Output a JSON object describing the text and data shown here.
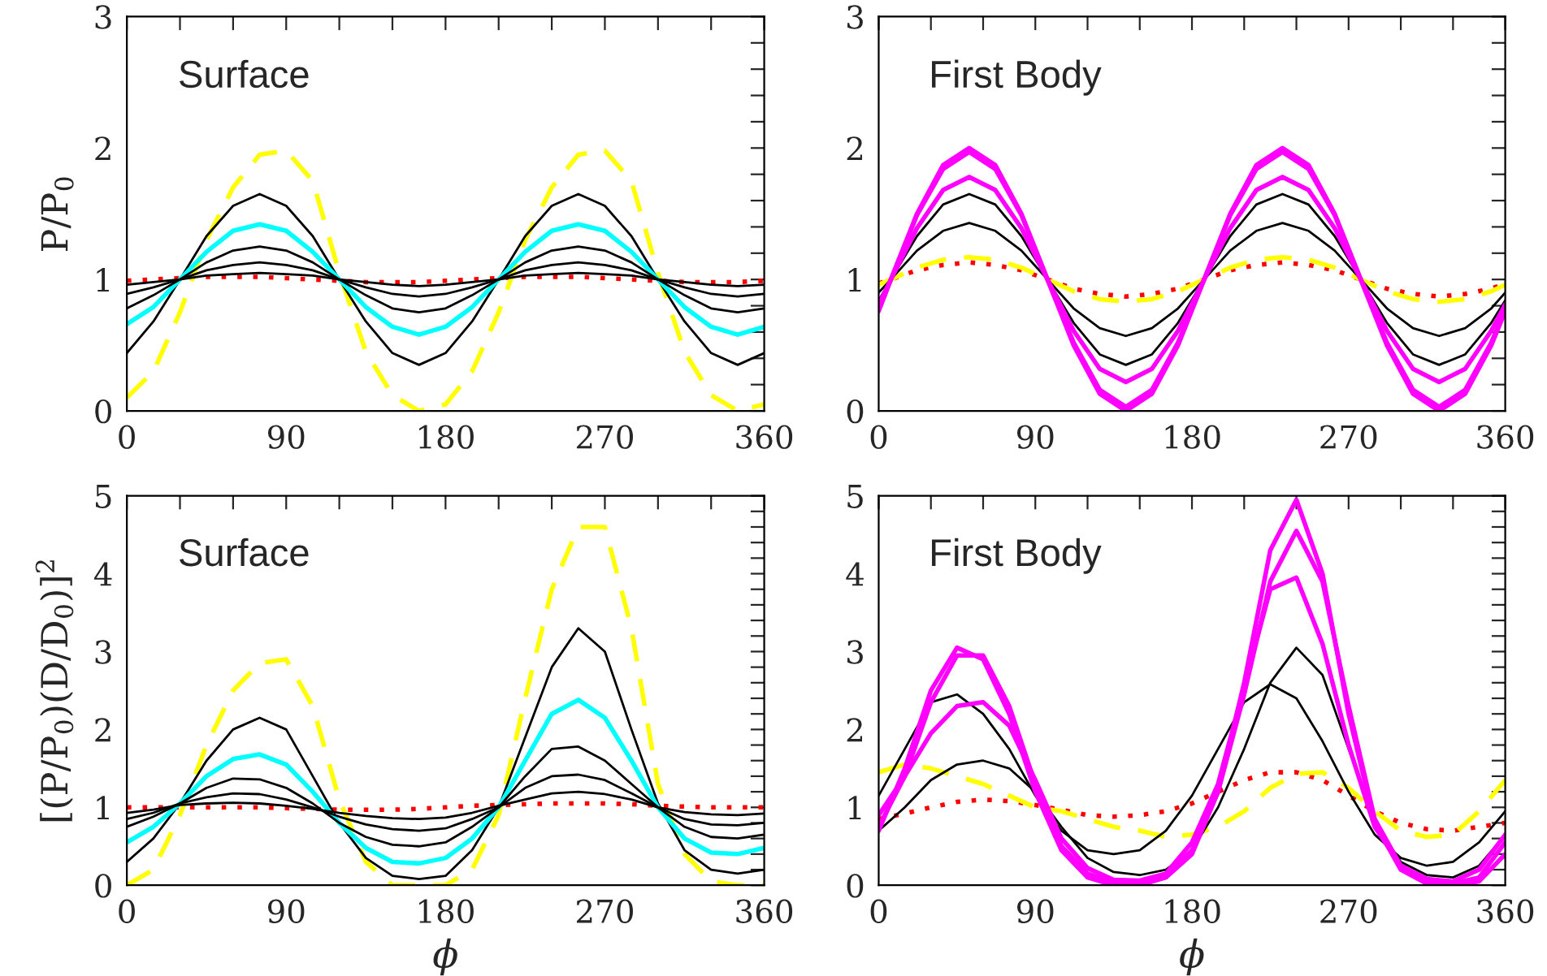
{
  "chart_data": [
    {
      "type": "line",
      "title": "Surface",
      "ylabel": "P/P$_{0}$",
      "xlim": [
        0,
        360
      ],
      "ylim": [
        0,
        3
      ],
      "xticks": [
        0,
        {
          "value": 30,
          "label": null
        },
        {
          "value": 60,
          "label": null
        },
        90,
        {
          "value": 120,
          "label": null
        },
        {
          "value": 150,
          "label": null
        },
        180,
        {
          "value": 210,
          "label": null
        },
        {
          "value": 240,
          "label": null
        },
        270,
        {
          "value": 300,
          "label": null
        },
        {
          "value": 330,
          "label": null
        },
        360
      ],
      "yticks": [
        0,
        {
          "value": 0.2,
          "label": null
        },
        {
          "value": 0.4,
          "label": null
        },
        {
          "value": 0.6,
          "label": null
        },
        {
          "value": 0.8,
          "label": null
        },
        1,
        {
          "value": 1.2,
          "label": null
        },
        {
          "value": 1.4,
          "label": null
        },
        {
          "value": 1.6,
          "label": null
        },
        {
          "value": 1.8,
          "label": null
        },
        2,
        {
          "value": 2.2,
          "label": null
        },
        {
          "value": 2.4,
          "label": null
        },
        {
          "value": 2.6,
          "label": null
        },
        {
          "value": 2.8,
          "label": null
        },
        3
      ],
      "x": [
        0,
        15,
        30,
        45,
        60,
        75,
        90,
        105,
        120,
        135,
        150,
        165,
        180,
        195,
        210,
        225,
        240,
        255,
        270,
        285,
        300,
        315,
        330,
        345,
        360
      ],
      "grid": false,
      "legend": false,
      "series": [
        {
          "color": "#ff0000",
          "line_style": "dotted",
          "values": [
            0.99,
            1.0,
            1.01,
            1.02,
            1.02,
            1.02,
            1.01,
            1.0,
            0.99,
            0.98,
            0.98,
            0.98,
            0.99,
            1.0,
            1.01,
            1.02,
            1.02,
            1.02,
            1.01,
            1.0,
            0.99,
            0.98,
            0.98,
            0.98,
            0.99
          ]
        },
        {
          "color": "#ffff00",
          "line_style": "dashed",
          "values": [
            0.1,
            0.3,
            0.75,
            1.3,
            1.7,
            1.95,
            1.98,
            1.75,
            1.05,
            0.45,
            0.12,
            0.0,
            0.05,
            0.3,
            0.75,
            1.3,
            1.7,
            1.95,
            1.98,
            1.75,
            1.05,
            0.45,
            0.12,
            0.0,
            0.05
          ]
        },
        {
          "color": "#000000",
          "line_style": "solid",
          "values": [
            0.44,
            0.68,
            1.0,
            1.33,
            1.56,
            1.65,
            1.56,
            1.33,
            1.0,
            0.68,
            0.44,
            0.35,
            0.44,
            0.68,
            1.0,
            1.33,
            1.56,
            1.65,
            1.56,
            1.33,
            1.0,
            0.68,
            0.44,
            0.35,
            0.44
          ]
        },
        {
          "color": "#00ffff",
          "line_style": "solid",
          "values": [
            0.66,
            0.79,
            1.0,
            1.21,
            1.37,
            1.42,
            1.37,
            1.21,
            1.0,
            0.79,
            0.64,
            0.58,
            0.64,
            0.79,
            1.0,
            1.21,
            1.37,
            1.42,
            1.37,
            1.21,
            1.0,
            0.79,
            0.64,
            0.58,
            0.64
          ]
        },
        {
          "color": "#000000",
          "line_style": "solid",
          "values": [
            0.78,
            0.88,
            1.0,
            1.13,
            1.22,
            1.25,
            1.22,
            1.13,
            1.0,
            0.88,
            0.78,
            0.75,
            0.78,
            0.88,
            1.0,
            1.13,
            1.22,
            1.25,
            1.22,
            1.13,
            1.0,
            0.88,
            0.78,
            0.75,
            0.78
          ]
        },
        {
          "color": "#000000",
          "line_style": "solid",
          "values": [
            0.89,
            0.94,
            1.0,
            1.07,
            1.11,
            1.13,
            1.11,
            1.07,
            1.0,
            0.94,
            0.89,
            0.87,
            0.89,
            0.94,
            1.0,
            1.07,
            1.11,
            1.13,
            1.11,
            1.07,
            1.0,
            0.94,
            0.89,
            0.87,
            0.89
          ]
        },
        {
          "color": "#000000",
          "line_style": "solid",
          "values": [
            0.96,
            0.98,
            1.0,
            1.03,
            1.04,
            1.05,
            1.04,
            1.03,
            1.0,
            0.98,
            0.96,
            0.95,
            0.96,
            0.98,
            1.0,
            1.03,
            1.04,
            1.05,
            1.04,
            1.03,
            1.0,
            0.98,
            0.96,
            0.95,
            0.96
          ]
        }
      ]
    },
    {
      "type": "line",
      "title": "First Body",
      "xlim": [
        0,
        360
      ],
      "ylim": [
        0,
        3
      ],
      "xticks": [
        0,
        {
          "value": 30,
          "label": null
        },
        {
          "value": 60,
          "label": null
        },
        90,
        {
          "value": 120,
          "label": null
        },
        {
          "value": 150,
          "label": null
        },
        180,
        {
          "value": 210,
          "label": null
        },
        {
          "value": 240,
          "label": null
        },
        270,
        {
          "value": 300,
          "label": null
        },
        {
          "value": 330,
          "label": null
        },
        360
      ],
      "yticks": [
        0,
        {
          "value": 0.2,
          "label": null
        },
        {
          "value": 0.4,
          "label": null
        },
        {
          "value": 0.6,
          "label": null
        },
        {
          "value": 0.8,
          "label": null
        },
        1,
        {
          "value": 1.2,
          "label": null
        },
        {
          "value": 1.4,
          "label": null
        },
        {
          "value": 1.6,
          "label": null
        },
        {
          "value": 1.8,
          "label": null
        },
        2,
        {
          "value": 2.2,
          "label": null
        },
        {
          "value": 2.4,
          "label": null
        },
        {
          "value": 2.6,
          "label": null
        },
        {
          "value": 2.8,
          "label": null
        },
        3
      ],
      "x": [
        0,
        7,
        22,
        37,
        52,
        67,
        82,
        97,
        112,
        127,
        142,
        157,
        172,
        187,
        202,
        217,
        232,
        247,
        262,
        277,
        292,
        307,
        322,
        337,
        352,
        360
      ],
      "grid": false,
      "legend": false,
      "series": [
        {
          "color": "#ff0000",
          "line_style": "dotted",
          "values": [
            0.97,
            1.0,
            1.07,
            1.11,
            1.13,
            1.11,
            1.07,
            1.0,
            0.93,
            0.89,
            0.87,
            0.89,
            0.93,
            1.0,
            1.07,
            1.11,
            1.13,
            1.11,
            1.07,
            1.0,
            0.93,
            0.89,
            0.87,
            0.89,
            0.93,
            0.97
          ]
        },
        {
          "color": "#ffff00",
          "line_style": "dashed",
          "values": [
            0.96,
            1.0,
            1.09,
            1.15,
            1.17,
            1.15,
            1.09,
            1.0,
            0.91,
            0.85,
            0.83,
            0.85,
            0.91,
            1.0,
            1.09,
            1.15,
            1.17,
            1.15,
            1.09,
            1.0,
            0.91,
            0.85,
            0.83,
            0.85,
            0.91,
            0.96
          ]
        },
        {
          "color": "#000000",
          "line_style": "solid",
          "values": [
            0.9,
            1.0,
            1.22,
            1.37,
            1.43,
            1.37,
            1.22,
            1.0,
            0.78,
            0.63,
            0.57,
            0.63,
            0.78,
            1.0,
            1.22,
            1.37,
            1.43,
            1.37,
            1.22,
            1.0,
            0.78,
            0.63,
            0.57,
            0.63,
            0.78,
            0.9
          ]
        },
        {
          "color": "#000000",
          "line_style": "solid",
          "values": [
            0.84,
            1.0,
            1.33,
            1.57,
            1.65,
            1.57,
            1.33,
            1.0,
            0.67,
            0.43,
            0.35,
            0.43,
            0.67,
            1.0,
            1.33,
            1.57,
            1.65,
            1.57,
            1.33,
            1.0,
            0.67,
            0.43,
            0.35,
            0.43,
            0.67,
            0.84
          ]
        },
        {
          "color": "#ff00ff",
          "line_style": "solid",
          "values": [
            0.81,
            1.0,
            1.39,
            1.68,
            1.78,
            1.68,
            1.39,
            1.0,
            0.61,
            0.32,
            0.22,
            0.32,
            0.61,
            1.0,
            1.39,
            1.68,
            1.78,
            1.68,
            1.39,
            1.0,
            0.61,
            0.32,
            0.22,
            0.32,
            0.61,
            0.81
          ]
        },
        {
          "color": "#ff00ff",
          "line_style": "solid",
          "values": [
            0.77,
            1.0,
            1.49,
            1.84,
            1.97,
            1.84,
            1.49,
            1.0,
            0.52,
            0.16,
            0.03,
            0.16,
            0.52,
            1.0,
            1.49,
            1.84,
            1.97,
            1.84,
            1.49,
            1.0,
            0.52,
            0.16,
            0.03,
            0.16,
            0.52,
            0.77
          ]
        },
        {
          "color": "#ff00ff",
          "line_style": "solid",
          "values": [
            0.76,
            1.0,
            1.5,
            1.87,
            2.0,
            1.87,
            1.5,
            1.0,
            0.5,
            0.13,
            0.0,
            0.13,
            0.5,
            1.0,
            1.5,
            1.87,
            2.0,
            1.87,
            1.5,
            1.0,
            0.5,
            0.13,
            0.0,
            0.13,
            0.5,
            0.76
          ]
        }
      ]
    },
    {
      "type": "line",
      "title": "Surface",
      "xlabel": "ϕ",
      "ylabel": "[(P/P$_{0}$)(D/D$_{0}$)]$^{2}$",
      "xlim": [
        0,
        360
      ],
      "ylim": [
        0,
        5
      ],
      "xticks": [
        0,
        {
          "value": 30,
          "label": null
        },
        {
          "value": 60,
          "label": null
        },
        90,
        {
          "value": 120,
          "label": null
        },
        {
          "value": 150,
          "label": null
        },
        180,
        {
          "value": 210,
          "label": null
        },
        {
          "value": 240,
          "label": null
        },
        270,
        {
          "value": 300,
          "label": null
        },
        {
          "value": 330,
          "label": null
        },
        360
      ],
      "yticks": [
        0,
        {
          "value": 0.2,
          "label": null
        },
        {
          "value": 0.4,
          "label": null
        },
        {
          "value": 0.6,
          "label": null
        },
        {
          "value": 0.8,
          "label": null
        },
        1,
        {
          "value": 1.2,
          "label": null
        },
        {
          "value": 1.4,
          "label": null
        },
        {
          "value": 1.6,
          "label": null
        },
        {
          "value": 1.8,
          "label": null
        },
        2,
        {
          "value": 2.2,
          "label": null
        },
        {
          "value": 2.4,
          "label": null
        },
        {
          "value": 2.6,
          "label": null
        },
        {
          "value": 2.8,
          "label": null
        },
        3,
        {
          "value": 3.2,
          "label": null
        },
        {
          "value": 3.4,
          "label": null
        },
        {
          "value": 3.6,
          "label": null
        },
        {
          "value": 3.8,
          "label": null
        },
        4,
        {
          "value": 4.2,
          "label": null
        },
        {
          "value": 4.4,
          "label": null
        },
        {
          "value": 4.6,
          "label": null
        },
        {
          "value": 4.8,
          "label": null
        },
        5
      ],
      "x": [
        0,
        15,
        30,
        45,
        60,
        75,
        90,
        105,
        120,
        135,
        150,
        165,
        180,
        195,
        210,
        225,
        240,
        255,
        270,
        285,
        300,
        315,
        330,
        345,
        360
      ],
      "grid": false,
      "legend": false,
      "series": [
        {
          "color": "#ff0000",
          "line_style": "dotted",
          "values": [
            1.0,
            1.0,
            1.0,
            1.0,
            1.0,
            1.0,
            0.99,
            0.98,
            0.97,
            0.97,
            0.97,
            0.98,
            1.0,
            1.02,
            1.03,
            1.04,
            1.05,
            1.05,
            1.05,
            1.04,
            1.02,
            1.01,
            1.0,
            1.0,
            1.0
          ]
        },
        {
          "color": "#ffff00",
          "line_style": "dashed",
          "values": [
            0.0,
            0.2,
            0.9,
            1.8,
            2.5,
            2.85,
            2.9,
            2.3,
            1.1,
            0.3,
            0.0,
            0.0,
            0.0,
            0.2,
            0.9,
            2.4,
            3.8,
            4.6,
            4.6,
            3.3,
            1.3,
            0.4,
            0.05,
            0.0,
            0.0
          ]
        },
        {
          "color": "#000000",
          "line_style": "solid",
          "values": [
            0.3,
            0.6,
            1.05,
            1.6,
            2.0,
            2.15,
            2.0,
            1.4,
            0.8,
            0.35,
            0.12,
            0.08,
            0.12,
            0.45,
            1.0,
            1.9,
            2.8,
            3.3,
            3.0,
            2.0,
            1.05,
            0.45,
            0.2,
            0.15,
            0.2
          ]
        },
        {
          "color": "#00ffff",
          "line_style": "solid",
          "values": [
            0.55,
            0.75,
            1.05,
            1.4,
            1.62,
            1.68,
            1.55,
            1.2,
            0.8,
            0.48,
            0.3,
            0.28,
            0.35,
            0.6,
            1.0,
            1.6,
            2.2,
            2.38,
            2.15,
            1.6,
            1.0,
            0.6,
            0.42,
            0.4,
            0.48
          ]
        },
        {
          "color": "#000000",
          "line_style": "solid",
          "values": [
            0.75,
            0.88,
            1.05,
            1.25,
            1.37,
            1.36,
            1.25,
            1.05,
            0.8,
            0.62,
            0.52,
            0.5,
            0.55,
            0.75,
            1.0,
            1.4,
            1.75,
            1.78,
            1.6,
            1.3,
            1.0,
            0.75,
            0.62,
            0.6,
            0.65
          ]
        },
        {
          "color": "#000000",
          "line_style": "solid",
          "values": [
            0.85,
            0.93,
            1.05,
            1.13,
            1.18,
            1.17,
            1.1,
            1.0,
            0.88,
            0.78,
            0.72,
            0.7,
            0.73,
            0.85,
            1.0,
            1.25,
            1.4,
            1.42,
            1.35,
            1.18,
            1.0,
            0.85,
            0.78,
            0.77,
            0.8
          ]
        },
        {
          "color": "#000000",
          "line_style": "solid",
          "values": [
            0.93,
            0.97,
            1.03,
            1.05,
            1.06,
            1.05,
            1.02,
            0.98,
            0.93,
            0.89,
            0.86,
            0.85,
            0.87,
            0.93,
            1.02,
            1.1,
            1.18,
            1.2,
            1.17,
            1.1,
            1.0,
            0.94,
            0.91,
            0.9,
            0.92
          ]
        }
      ]
    },
    {
      "type": "line",
      "title": "First Body",
      "xlabel": "ϕ",
      "xlim": [
        0,
        360
      ],
      "ylim": [
        0,
        5
      ],
      "xticks": [
        0,
        {
          "value": 30,
          "label": null
        },
        {
          "value": 60,
          "label": null
        },
        90,
        {
          "value": 120,
          "label": null
        },
        {
          "value": 150,
          "label": null
        },
        180,
        {
          "value": 210,
          "label": null
        },
        {
          "value": 240,
          "label": null
        },
        270,
        {
          "value": 300,
          "label": null
        },
        {
          "value": 330,
          "label": null
        },
        360
      ],
      "yticks": [
        0,
        {
          "value": 0.2,
          "label": null
        },
        {
          "value": 0.4,
          "label": null
        },
        {
          "value": 0.6,
          "label": null
        },
        {
          "value": 0.8,
          "label": null
        },
        1,
        {
          "value": 1.2,
          "label": null
        },
        {
          "value": 1.4,
          "label": null
        },
        {
          "value": 1.6,
          "label": null
        },
        {
          "value": 1.8,
          "label": null
        },
        2,
        {
          "value": 2.2,
          "label": null
        },
        {
          "value": 2.4,
          "label": null
        },
        {
          "value": 2.6,
          "label": null
        },
        {
          "value": 2.8,
          "label": null
        },
        3,
        {
          "value": 3.2,
          "label": null
        },
        {
          "value": 3.4,
          "label": null
        },
        {
          "value": 3.6,
          "label": null
        },
        {
          "value": 3.8,
          "label": null
        },
        4,
        {
          "value": 4.2,
          "label": null
        },
        {
          "value": 4.4,
          "label": null
        },
        {
          "value": 4.6,
          "label": null
        },
        {
          "value": 4.8,
          "label": null
        },
        5
      ],
      "x": [
        0,
        15,
        30,
        45,
        60,
        75,
        90,
        105,
        120,
        135,
        150,
        165,
        180,
        195,
        210,
        225,
        240,
        255,
        270,
        285,
        300,
        315,
        330,
        345,
        360
      ],
      "grid": false,
      "legend": false,
      "series": [
        {
          "color": "#ff0000",
          "line_style": "dotted",
          "values": [
            0.85,
            0.92,
            1.0,
            1.07,
            1.1,
            1.08,
            1.03,
            0.97,
            0.9,
            0.88,
            0.9,
            0.95,
            1.05,
            1.2,
            1.35,
            1.45,
            1.45,
            1.35,
            1.15,
            0.95,
            0.8,
            0.72,
            0.7,
            0.75,
            0.8
          ]
        },
        {
          "color": "#ffff00",
          "line_style": "dashed",
          "values": [
            1.45,
            1.55,
            1.5,
            1.4,
            1.3,
            1.15,
            1.0,
            0.95,
            0.85,
            0.75,
            0.7,
            0.62,
            0.65,
            0.75,
            0.95,
            1.25,
            1.43,
            1.45,
            1.25,
            0.95,
            0.7,
            0.62,
            0.65,
            0.95,
            1.35
          ]
        },
        {
          "color": "#000000",
          "line_style": "solid",
          "values": [
            1.15,
            1.75,
            2.35,
            2.45,
            2.2,
            1.75,
            1.15,
            0.7,
            0.45,
            0.4,
            0.45,
            0.7,
            1.15,
            1.75,
            2.35,
            2.58,
            2.4,
            1.85,
            1.2,
            0.65,
            0.35,
            0.25,
            0.3,
            0.55,
            0.95
          ]
        },
        {
          "color": "#000000",
          "line_style": "solid",
          "values": [
            0.7,
            1.0,
            1.35,
            1.55,
            1.6,
            1.5,
            1.2,
            0.75,
            0.35,
            0.17,
            0.13,
            0.2,
            0.45,
            1.0,
            1.75,
            2.6,
            3.05,
            2.7,
            1.75,
            0.8,
            0.3,
            0.13,
            0.1,
            0.25,
            0.65
          ]
        },
        {
          "color": "#ff00ff",
          "line_style": "solid",
          "values": [
            0.9,
            1.4,
            1.95,
            2.3,
            2.35,
            2.05,
            1.35,
            0.6,
            0.22,
            0.07,
            0.06,
            0.15,
            0.55,
            1.3,
            2.55,
            3.8,
            3.95,
            3.1,
            1.8,
            0.75,
            0.25,
            0.08,
            0.05,
            0.2,
            0.65
          ]
        },
        {
          "color": "#ff00ff",
          "line_style": "solid",
          "values": [
            0.75,
            1.4,
            2.35,
            2.95,
            2.95,
            2.3,
            1.3,
            0.5,
            0.15,
            0.03,
            0.02,
            0.12,
            0.45,
            1.2,
            2.45,
            3.9,
            4.55,
            3.9,
            2.3,
            0.85,
            0.25,
            0.05,
            0.02,
            0.1,
            0.55
          ]
        },
        {
          "color": "#ff00ff",
          "line_style": "solid",
          "values": [
            0.7,
            1.5,
            2.5,
            3.05,
            2.9,
            2.2,
            1.2,
            0.45,
            0.1,
            0.0,
            0.0,
            0.1,
            0.4,
            1.2,
            2.6,
            4.3,
            4.95,
            4.0,
            2.2,
            0.8,
            0.2,
            0.02,
            0.0,
            0.05,
            0.4
          ]
        }
      ]
    }
  ]
}
